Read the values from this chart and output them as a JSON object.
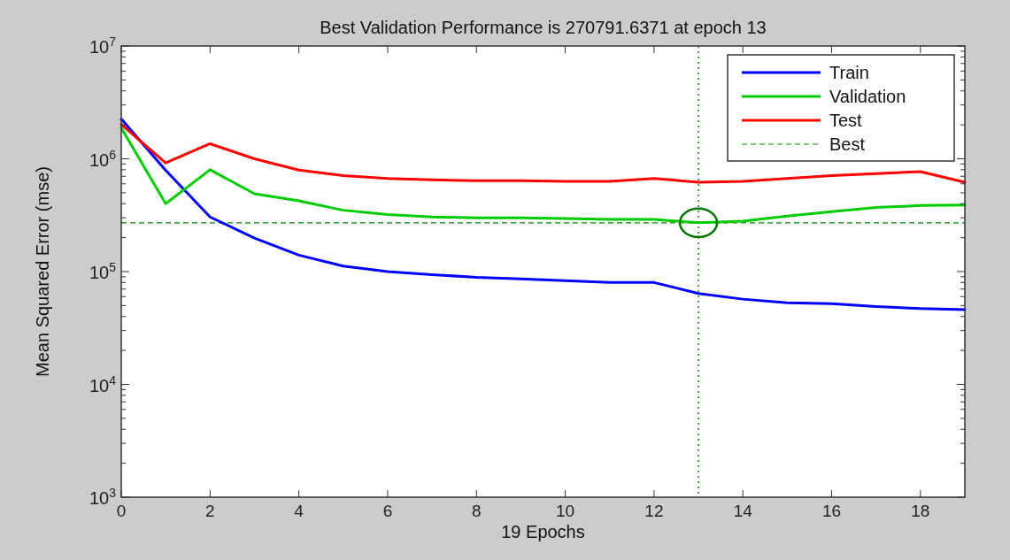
{
  "chart_data": {
    "type": "line",
    "title": "Best Validation Performance is 270791.6371 at epoch 13",
    "xlabel": "19 Epochs",
    "ylabel": "Mean Squared Error  (mse)",
    "x": [
      0,
      1,
      2,
      3,
      4,
      5,
      6,
      7,
      8,
      9,
      10,
      11,
      12,
      13,
      14,
      15,
      16,
      17,
      18,
      19
    ],
    "series": [
      {
        "name": "Train",
        "color": "#0000ff",
        "values": [
          2250000,
          790000,
          305000,
          198000,
          140000,
          112000,
          100000,
          94000,
          89000,
          86000,
          83000,
          80000,
          80000,
          64000,
          57000,
          53000,
          52000,
          49000,
          47000,
          46000
        ]
      },
      {
        "name": "Validation",
        "color": "#00cc00",
        "values": [
          1880000,
          400000,
          800000,
          490000,
          424000,
          350000,
          320000,
          305000,
          300000,
          300000,
          295000,
          290000,
          290000,
          270791.6371,
          280000,
          310000,
          340000,
          370000,
          385000,
          390000
        ]
      },
      {
        "name": "Test",
        "color": "#ff0000",
        "values": [
          2020000,
          920000,
          1360000,
          1000000,
          795000,
          710000,
          670000,
          650000,
          640000,
          640000,
          630000,
          630000,
          670000,
          620000,
          630000,
          670000,
          710000,
          740000,
          770000,
          620000
        ]
      },
      {
        "type": "scatter",
        "color": "#007700",
        "x": [
          13
        ],
        "values": [
          270791.6371
        ],
        "marker": "circle"
      }
    ],
    "log": true,
    "xlim": [
      0,
      19
    ],
    "xticks": [
      0,
      2,
      4,
      6,
      8,
      10,
      12,
      14,
      16,
      18
    ],
    "ylim": [
      1000,
      10000000
    ],
    "yticks": [
      {
        "value": 1000,
        "label": "10$^{3}$"
      },
      {
        "value": 10000,
        "label": "10$^{4}$"
      },
      {
        "value": 100000,
        "label": "10$^{5}$"
      },
      {
        "value": 1000000,
        "label": "10$^{6}$"
      },
      {
        "value": 10000000,
        "label": "10$^{7}$"
      }
    ],
    "ref_lines": [
      {
        "axis": "y",
        "value": 270791.6371,
        "label": "Best",
        "color": "#008800",
        "line_style": "dashed"
      },
      {
        "axis": "x",
        "value": 13,
        "color": "#008800",
        "line_style": "dotted"
      }
    ],
    "legend": "top right",
    "grid": false,
    "line_style": "solid",
    "marker": "none"
  }
}
